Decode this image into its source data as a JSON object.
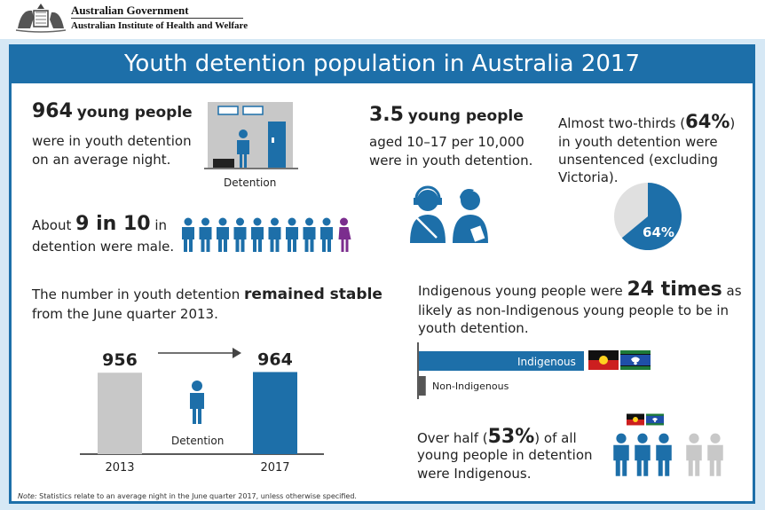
{
  "header": {
    "org_line1": "Australian Government",
    "org_line2": "Australian Institute of Health and Welfare"
  },
  "title": "Youth detention population in Australia 2017",
  "colors": {
    "blue": "#1d6fa9",
    "grey": "#c8c8c8",
    "purple": "#7b2d8e",
    "dark": "#2b2b2b"
  },
  "stat_964": {
    "number": "964",
    "unit": "young people",
    "line2": "were in youth detention",
    "line3": "on an average night.",
    "icon_label": "Detention"
  },
  "stat_rate": {
    "number": "3.5",
    "unit": "young people",
    "line2": "aged 10–17 per 10,000",
    "line3": "were in youth detention."
  },
  "stat_unsentenced": {
    "line1_pre": "Almost two-thirds (",
    "percent": "64%",
    "line1_post": ")",
    "line2": "in youth detention were",
    "line3": "unsentenced (excluding",
    "line4": "Victoria).",
    "pie_label": "64%",
    "pie_value": 0.64
  },
  "stat_male": {
    "pre": "About",
    "number": "9 in 10",
    "post": "in",
    "line2": "detention were male.",
    "male_count": 9,
    "female_count": 1
  },
  "stable": {
    "pre": "The number in youth detention",
    "emph": "remained stable",
    "line2": "from the June quarter 2013."
  },
  "chart_data": {
    "type": "bar",
    "categories": [
      "2013",
      "2017"
    ],
    "values": [
      956,
      964
    ],
    "value_labels": [
      "956",
      "964"
    ],
    "icon_label": "Detention"
  },
  "indigenous": {
    "pre": "Indigenous young people were",
    "number": "24 times",
    "post": "as",
    "line2": "likely as non-Indigenous young people to be in",
    "line3": "youth detention.",
    "bar1_label": "Indigenous",
    "bar2_label": "Non-Indigenous",
    "ratio": 24
  },
  "half": {
    "pre": "Over half (",
    "percent": "53%",
    "post": ") of all",
    "line2": "young people in detention",
    "line3": "were Indigenous.",
    "blue_count": 3,
    "grey_count": 2
  },
  "note": {
    "label": "Note:",
    "text": " Statistics relate to an average night in the June quarter 2017, unless otherwise specified."
  }
}
